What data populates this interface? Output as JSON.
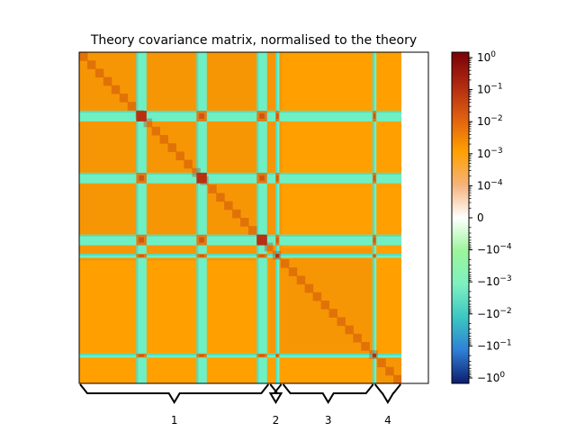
{
  "chart_data": {
    "type": "heatmap",
    "title": "Theory covariance matrix, normalised to the theory",
    "colorbar": {
      "scale": "symlog",
      "colormap": [
        "#0b1d6e",
        "#2f7fd6",
        "#3bc7c2",
        "#7ff0c0",
        "#9bf59b",
        "#ffffff",
        "#f5b27a",
        "#ffa000",
        "#e06010",
        "#b02a10",
        "#7a0008"
      ],
      "tick_labels": [
        "10^0",
        "10^-1",
        "10^-2",
        "10^-3",
        "10^-4",
        "0",
        "-10^-4",
        "-10^-3",
        "-10^-2",
        "-10^-1",
        "-10^0"
      ]
    },
    "blocks": [
      {
        "label": "1",
        "start": 0.0,
        "end": 0.59
      },
      {
        "label": "2",
        "start": 0.59,
        "end": 0.63
      },
      {
        "label": "3",
        "start": 0.63,
        "end": 0.915
      },
      {
        "label": "4",
        "start": 0.915,
        "end": 1.0
      }
    ],
    "bands": [
      {
        "center": 0.193,
        "width": 0.032
      },
      {
        "center": 0.38,
        "width": 0.032
      },
      {
        "center": 0.567,
        "width": 0.032
      },
      {
        "center": 0.615,
        "width": 0.012
      },
      {
        "center": 0.916,
        "width": 0.012
      }
    ],
    "extent_fraction": 0.923,
    "colors": {
      "background": "#ffa000",
      "background_dark": "#f08e08",
      "band": "#6ef0c4",
      "band_edge": "#54dcc0",
      "cross": "#e07c18",
      "cross_dark": "#c84e10",
      "diag": "#b83010"
    }
  }
}
